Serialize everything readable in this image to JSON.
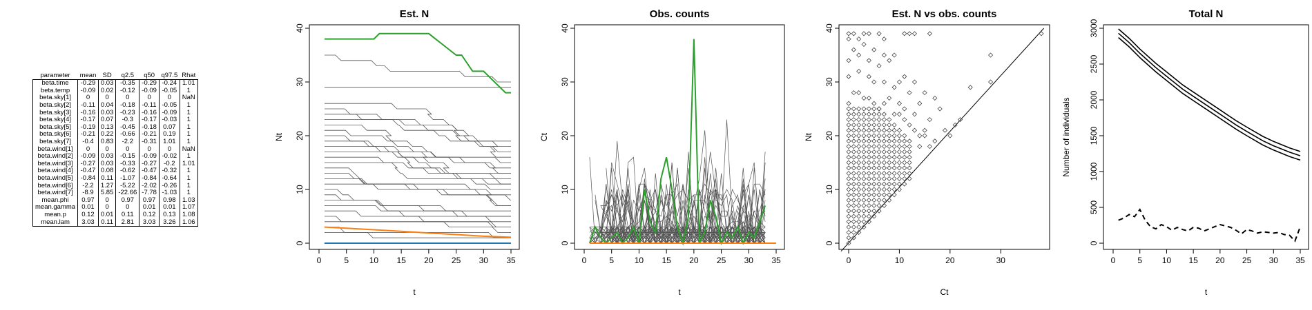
{
  "table": {
    "columns": [
      "parameter",
      "mean",
      "SD",
      "q2.5",
      "q50",
      "q97.5",
      "Rhat"
    ],
    "rows": [
      [
        "beta.time",
        "-0.29",
        "0.03",
        "-0.35",
        "-0.29",
        "-0.24",
        "1.01"
      ],
      [
        "beta.temp",
        "-0.09",
        "0.02",
        "-0.12",
        "-0.09",
        "-0.05",
        "1"
      ],
      [
        "beta.sky[1]",
        "0",
        "0",
        "0",
        "0",
        "0",
        "NaN"
      ],
      [
        "beta.sky[2]",
        "-0.11",
        "0.04",
        "-0.18",
        "-0.11",
        "-0.05",
        "1"
      ],
      [
        "beta.sky[3]",
        "-0.16",
        "0.03",
        "-0.23",
        "-0.16",
        "-0.09",
        "1"
      ],
      [
        "beta.sky[4]",
        "-0.17",
        "0.07",
        "-0.3",
        "-0.17",
        "-0.03",
        "1"
      ],
      [
        "beta.sky[5]",
        "-0.19",
        "0.13",
        "-0.45",
        "-0.18",
        "0.07",
        "1"
      ],
      [
        "beta.sky[6]",
        "-0.21",
        "0.22",
        "-0.66",
        "-0.21",
        "0.19",
        "1"
      ],
      [
        "beta.sky[7]",
        "-0.4",
        "0.83",
        "-2.2",
        "-0.31",
        "1.01",
        "1"
      ],
      [
        "beta.wind[1]",
        "0",
        "0",
        "0",
        "0",
        "0",
        "NaN"
      ],
      [
        "beta.wind[2]",
        "-0.09",
        "0.03",
        "-0.15",
        "-0.09",
        "-0.02",
        "1"
      ],
      [
        "beta.wind[3]",
        "-0.27",
        "0.03",
        "-0.33",
        "-0.27",
        "-0.2",
        "1.01"
      ],
      [
        "beta.wind[4]",
        "-0.47",
        "0.08",
        "-0.62",
        "-0.47",
        "-0.32",
        "1"
      ],
      [
        "beta.wind[5]",
        "-0.84",
        "0.11",
        "-1.07",
        "-0.84",
        "-0.64",
        "1"
      ],
      [
        "beta.wind[6]",
        "-2.2",
        "1.27",
        "-5.22",
        "-2.02",
        "-0.26",
        "1"
      ],
      [
        "beta.wind[7]",
        "-8.9",
        "5.85",
        "-22.66",
        "-7.78",
        "-1.03",
        "1"
      ],
      [
        "mean.phi",
        "0.97",
        "0",
        "0.97",
        "0.97",
        "0.98",
        "1.03"
      ],
      [
        "mean.gamma",
        "0.01",
        "0",
        "0",
        "0.01",
        "0.01",
        "1.07"
      ],
      [
        "mean.p",
        "0.12",
        "0.01",
        "0.11",
        "0.12",
        "0.13",
        "1.08"
      ],
      [
        "mean.lam",
        "3.03",
        "0.11",
        "2.81",
        "3.03",
        "3.26",
        "1.06"
      ]
    ]
  },
  "chart_data": [
    {
      "type": "line",
      "title": "Est. N",
      "xlabel": "t",
      "ylabel": "Nt",
      "xlim": [
        0,
        35
      ],
      "ylim": [
        0,
        40
      ],
      "xticks": [
        0,
        5,
        10,
        15,
        20,
        25,
        30,
        35
      ],
      "yticks": [
        0,
        10,
        20,
        30,
        40
      ],
      "grey_start_levels": [
        35,
        29,
        26,
        25,
        24,
        23,
        22,
        21,
        20,
        19,
        18,
        17,
        16,
        15,
        14,
        13,
        12,
        11,
        10,
        9,
        8,
        7,
        6,
        5,
        4,
        3,
        2
      ],
      "grey_end_levels": [
        30,
        30,
        19,
        18,
        17,
        16,
        15,
        14,
        13,
        13,
        12,
        11,
        11,
        10,
        9,
        8,
        7,
        7,
        6,
        5,
        5,
        4,
        3,
        3,
        2,
        1,
        1
      ],
      "series": [
        {
          "color": "#2ca02c",
          "x": [
            1,
            5,
            10,
            11,
            15,
            20,
            25,
            26,
            28,
            30,
            32,
            34,
            35
          ],
          "y": [
            38,
            38,
            38,
            39,
            39,
            39,
            35,
            35,
            32,
            32,
            30,
            28,
            28
          ]
        },
        {
          "color": "#ff7f0e",
          "x": [
            1,
            5,
            10,
            15,
            20,
            25,
            30,
            35
          ],
          "y": [
            3,
            2.8,
            2.5,
            2.2,
            1.9,
            1.6,
            1.3,
            1.1
          ]
        },
        {
          "color": "#1f77b4",
          "x": [
            1,
            35
          ],
          "y": [
            0,
            0
          ]
        }
      ],
      "colors": {
        "highlight": "#2ca02c",
        "orange": "#ff7f0e",
        "blue": "#1f77b4",
        "grey": "#555555"
      }
    },
    {
      "type": "line",
      "title": "Obs. counts",
      "xlabel": "t",
      "ylabel": "Ct",
      "xlim": [
        0,
        35
      ],
      "ylim": [
        0,
        40
      ],
      "xticks": [
        0,
        5,
        10,
        15,
        20,
        25,
        30,
        35
      ],
      "yticks": [
        0,
        10,
        20,
        30,
        40
      ],
      "series": [
        {
          "color": "#2ca02c",
          "x": [
            1,
            2,
            3,
            4,
            5,
            6,
            7,
            8,
            9,
            10,
            11,
            12,
            13,
            14,
            15,
            16,
            17,
            18,
            19,
            20,
            21,
            22,
            23,
            24,
            25,
            26,
            27,
            28,
            29,
            30,
            31,
            32,
            33
          ],
          "y": [
            0,
            3,
            1,
            0,
            1,
            2,
            0,
            1,
            3,
            0,
            10,
            4,
            2,
            12,
            16,
            10,
            3,
            0,
            5,
            38,
            0,
            2,
            8,
            5,
            0,
            2,
            1,
            3,
            0,
            2,
            1,
            4,
            7
          ]
        },
        {
          "color": "#ff7f0e",
          "x": [
            1,
            35
          ],
          "y": [
            0,
            0
          ]
        }
      ]
    },
    {
      "type": "scatter",
      "title": "Est. N vs obs. counts",
      "xlabel": "Ct",
      "ylabel": "Nt",
      "xlim": [
        0,
        38
      ],
      "ylim": [
        0,
        40
      ],
      "xticks": [
        0,
        10,
        20,
        30
      ],
      "yticks": [
        0,
        10,
        20,
        30,
        40
      ],
      "reference_line": "y = x",
      "outliers": [
        [
          0,
          39
        ],
        [
          0,
          38
        ],
        [
          1,
          39
        ],
        [
          2,
          38
        ],
        [
          3,
          39
        ],
        [
          4,
          39
        ],
        [
          6,
          39
        ],
        [
          7,
          38
        ],
        [
          11,
          39
        ],
        [
          12,
          39
        ],
        [
          13,
          39
        ],
        [
          16,
          39
        ],
        [
          1,
          36
        ],
        [
          3,
          37
        ],
        [
          5,
          36
        ],
        [
          0,
          34
        ],
        [
          2,
          35
        ],
        [
          4,
          34
        ],
        [
          7,
          35
        ],
        [
          9,
          35
        ],
        [
          6,
          33
        ],
        [
          8,
          34
        ],
        [
          0,
          31
        ],
        [
          2,
          32
        ],
        [
          4,
          31
        ],
        [
          5,
          30
        ],
        [
          7,
          30
        ],
        [
          10,
          30
        ],
        [
          11,
          31
        ],
        [
          13,
          30
        ],
        [
          12,
          28
        ],
        [
          15,
          28
        ],
        [
          17,
          27
        ],
        [
          14,
          26
        ],
        [
          18,
          25
        ],
        [
          21,
          22
        ],
        [
          22,
          23
        ],
        [
          24,
          29
        ],
        [
          28,
          35
        ],
        [
          28,
          30
        ],
        [
          38,
          39
        ],
        [
          9,
          29
        ],
        [
          10,
          26
        ],
        [
          11,
          25
        ],
        [
          13,
          24
        ],
        [
          16,
          23
        ],
        [
          15,
          21
        ],
        [
          17,
          19
        ],
        [
          19,
          21
        ],
        [
          20,
          20
        ],
        [
          16,
          18
        ],
        [
          14,
          18
        ],
        [
          1,
          28
        ],
        [
          2,
          28
        ],
        [
          3,
          27
        ],
        [
          0,
          26
        ],
        [
          4,
          27
        ],
        [
          5,
          26
        ],
        [
          6,
          25
        ],
        [
          7,
          26
        ],
        [
          8,
          27
        ],
        [
          9,
          24
        ],
        [
          10,
          24
        ],
        [
          11,
          23
        ],
        [
          12,
          22
        ],
        [
          13,
          21
        ],
        [
          14,
          20
        ],
        [
          15,
          20
        ]
      ],
      "dense_region": {
        "ct_max": 12,
        "nt_max": 25,
        "step": 1
      }
    },
    {
      "type": "line",
      "title": "Total N",
      "xlabel": "t",
      "ylabel": "Number of individuals",
      "xlim": [
        0,
        35
      ],
      "ylim": [
        0,
        3000
      ],
      "xticks": [
        0,
        5,
        10,
        15,
        20,
        25,
        30,
        35
      ],
      "yticks": [
        0,
        500,
        1000,
        1500,
        2000,
        2500,
        3000
      ],
      "series": [
        {
          "style": "solid",
          "x": [
            1,
            3,
            5,
            8,
            10,
            13,
            15,
            18,
            20,
            23,
            25,
            28,
            30,
            33,
            35
          ],
          "y": [
            2930,
            2800,
            2650,
            2450,
            2330,
            2150,
            2050,
            1900,
            1800,
            1650,
            1560,
            1430,
            1360,
            1270,
            1220
          ]
        },
        {
          "style": "solid",
          "x": [
            1,
            3,
            5,
            8,
            10,
            13,
            15,
            18,
            20,
            23,
            25,
            28,
            30,
            33,
            35
          ],
          "y": [
            2990,
            2860,
            2710,
            2510,
            2390,
            2210,
            2110,
            1960,
            1860,
            1710,
            1620,
            1490,
            1420,
            1330,
            1280
          ]
        },
        {
          "style": "solid",
          "x": [
            1,
            3,
            5,
            8,
            10,
            13,
            15,
            18,
            20,
            23,
            25,
            28,
            30,
            33,
            35
          ],
          "y": [
            2870,
            2740,
            2590,
            2390,
            2270,
            2090,
            1990,
            1840,
            1740,
            1590,
            1500,
            1370,
            1300,
            1210,
            1160
          ]
        },
        {
          "style": "dashed",
          "x": [
            1,
            2,
            3,
            4,
            5,
            6,
            7,
            8,
            9,
            10,
            11,
            12,
            13,
            14,
            15,
            16,
            17,
            18,
            19,
            20,
            21,
            22,
            23,
            24,
            25,
            26,
            27,
            28,
            29,
            30,
            31,
            32,
            33,
            34,
            35
          ],
          "y": [
            320,
            350,
            400,
            370,
            470,
            320,
            230,
            200,
            260,
            230,
            180,
            220,
            190,
            170,
            220,
            210,
            170,
            200,
            230,
            260,
            240,
            220,
            180,
            130,
            190,
            170,
            140,
            160,
            150,
            140,
            150,
            120,
            110,
            30,
            230
          ]
        }
      ]
    }
  ]
}
